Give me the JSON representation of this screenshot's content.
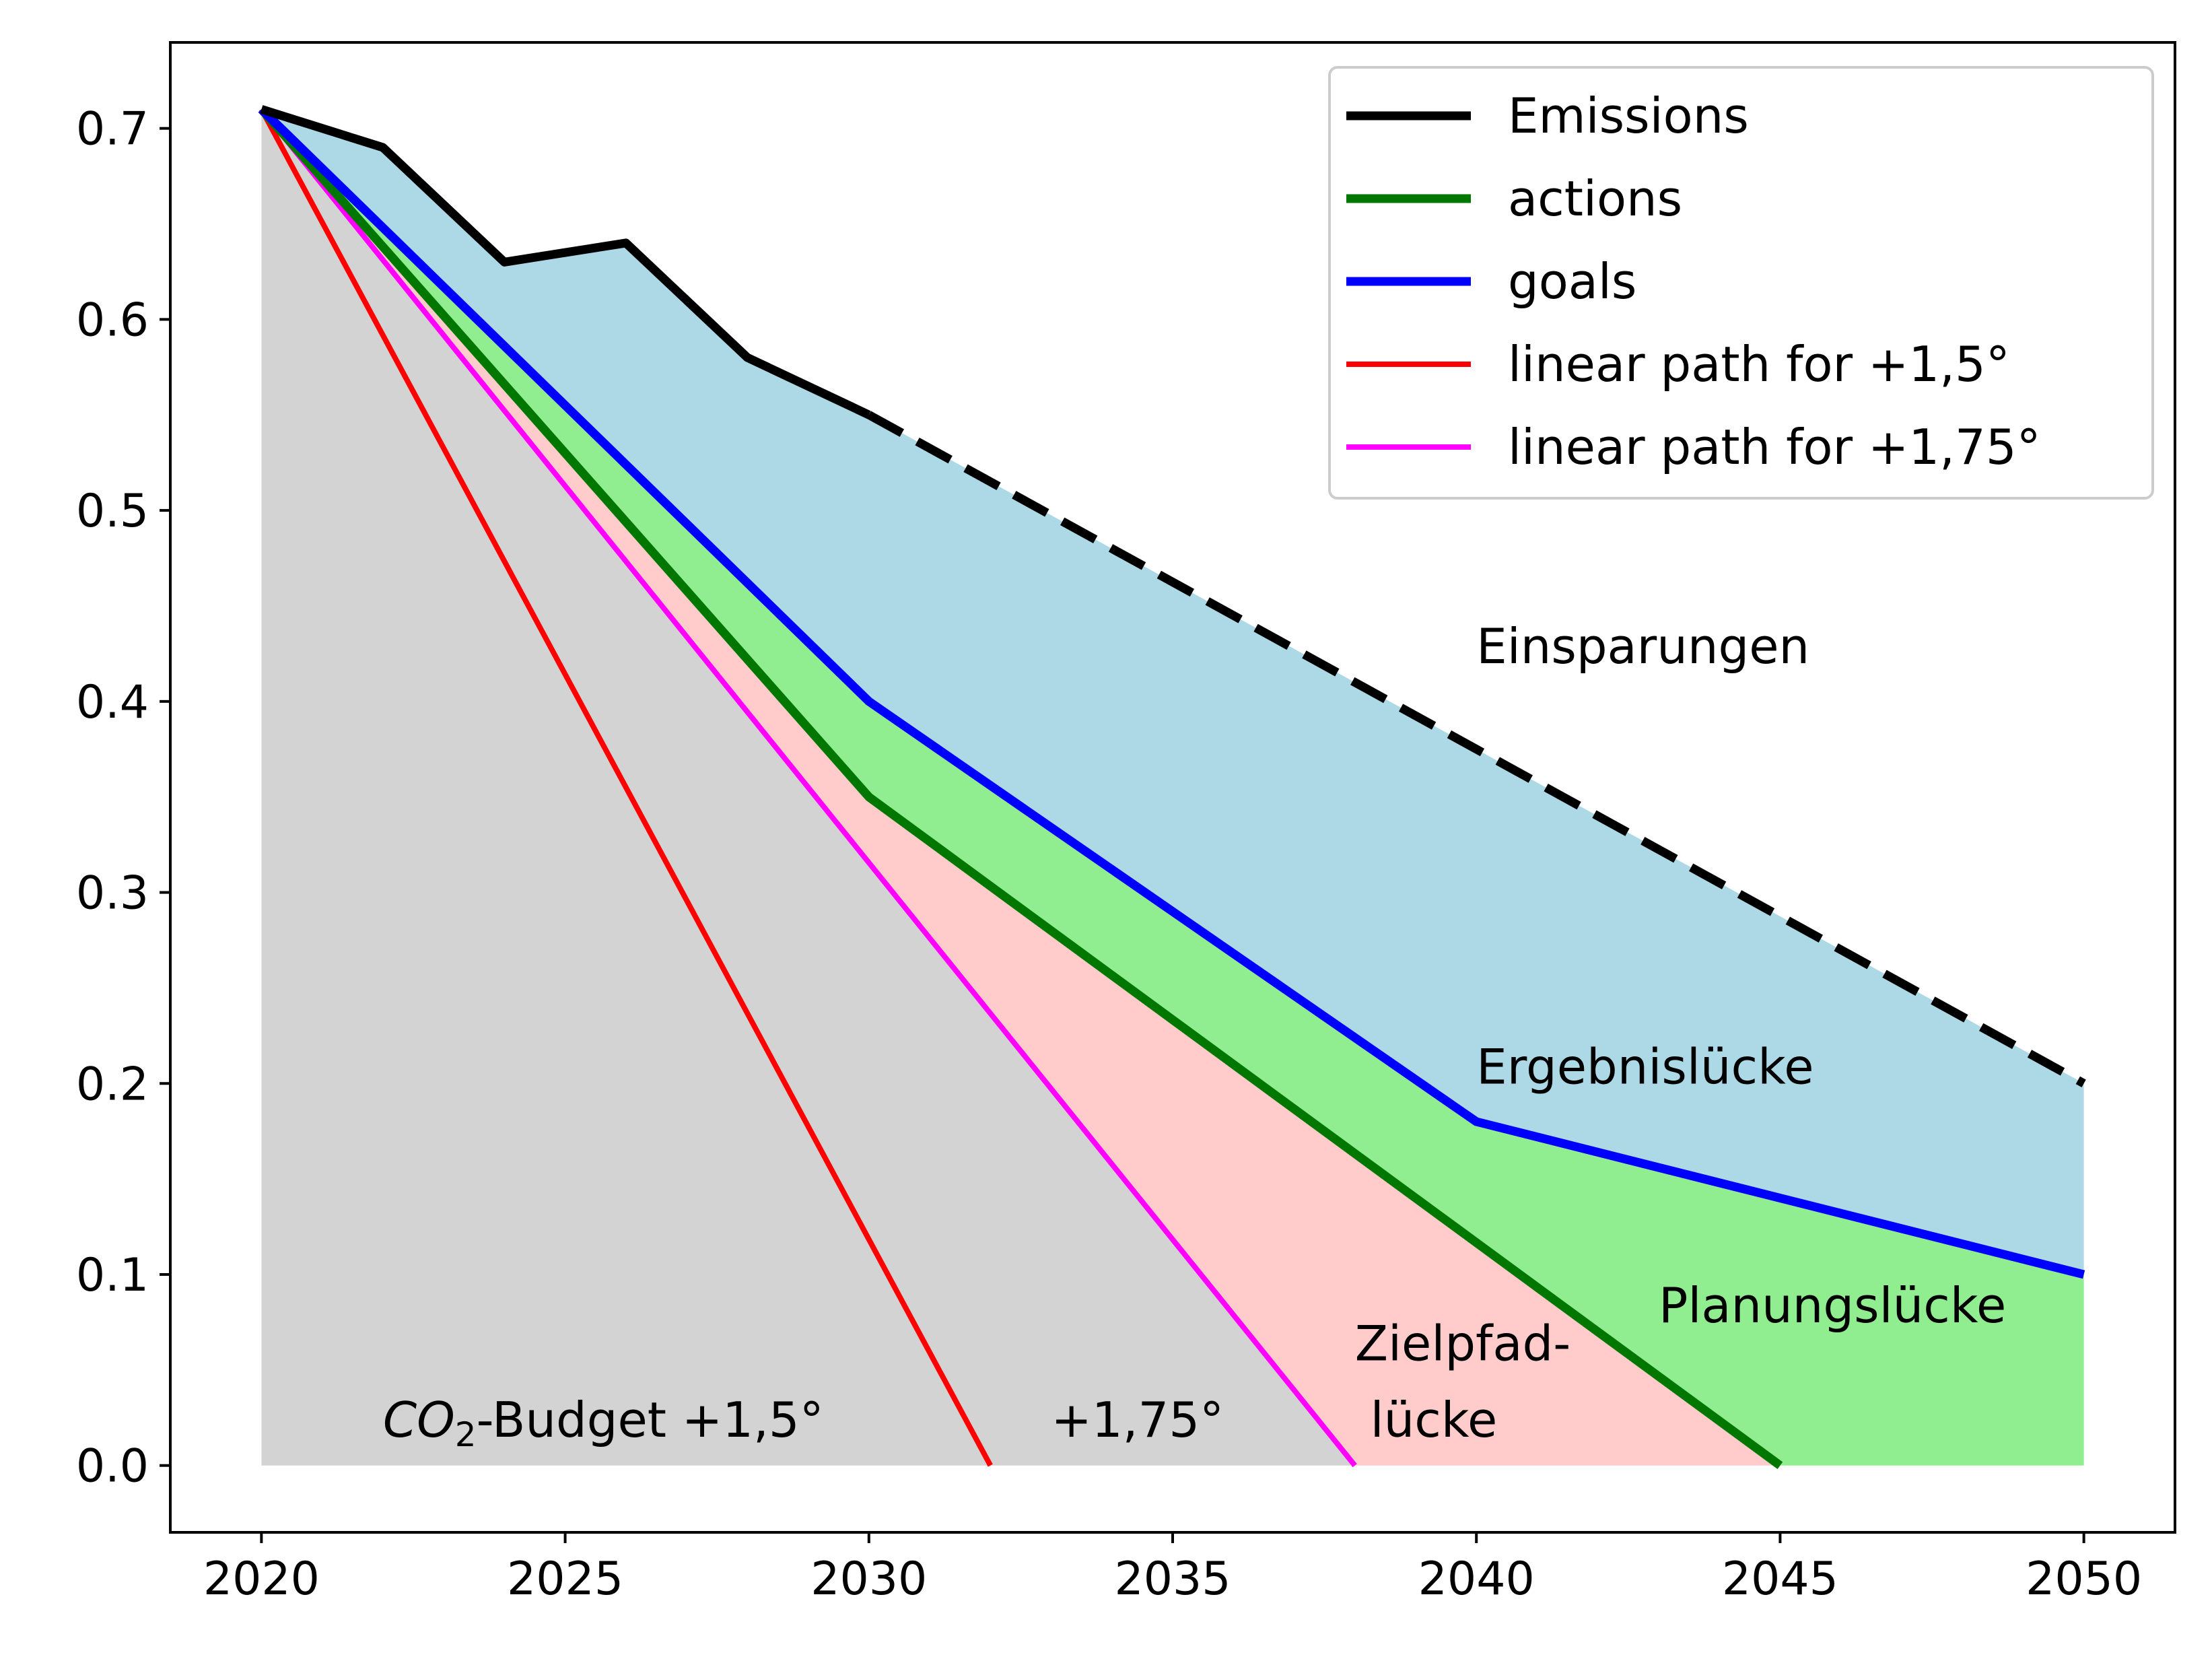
{
  "chart_data": {
    "type": "line",
    "xlim": [
      2018.5,
      2051.5
    ],
    "ylim": [
      -0.035,
      0.745
    ],
    "x_ticks": [
      2020,
      2025,
      2030,
      2035,
      2040,
      2045,
      2050
    ],
    "x_tick_labels": [
      "2020",
      "2025",
      "2030",
      "2035",
      "2040",
      "2045",
      "2050"
    ],
    "y_ticks": [
      0.0,
      0.1,
      0.2,
      0.3,
      0.4,
      0.5,
      0.6,
      0.7
    ],
    "y_tick_labels": [
      "0.0",
      "0.1",
      "0.2",
      "0.3",
      "0.4",
      "0.5",
      "0.6",
      "0.7"
    ],
    "grid": false,
    "legend_position": "top-right",
    "series": [
      {
        "name": "Emissions",
        "color": "#000000",
        "style": "solid",
        "x": [
          2020,
          2022,
          2024,
          2026,
          2028,
          2030
        ],
        "y": [
          0.71,
          0.69,
          0.63,
          0.64,
          0.58,
          0.55
        ]
      },
      {
        "name": "Emissions (projection)",
        "color": "#000000",
        "style": "dashed",
        "x": [
          2030,
          2050
        ],
        "y": [
          0.55,
          0.2
        ]
      },
      {
        "name": "actions",
        "color": "#007700",
        "style": "solid",
        "x": [
          2020,
          2030,
          2045
        ],
        "y": [
          0.71,
          0.35,
          0.0
        ]
      },
      {
        "name": "goals",
        "color": "#0000ff",
        "style": "solid",
        "x": [
          2020,
          2030,
          2040,
          2050
        ],
        "y": [
          0.71,
          0.4,
          0.18,
          0.1
        ]
      },
      {
        "name": "linear path for +1,5°",
        "color": "#ff0000",
        "style": "solid",
        "x": [
          2020,
          2032
        ],
        "y": [
          0.71,
          0.0
        ]
      },
      {
        "name": "linear path for +1,75°",
        "color": "#ff00ff",
        "style": "solid",
        "x": [
          2020,
          2038
        ],
        "y": [
          0.71,
          0.0
        ]
      }
    ],
    "legend_entries": [
      "Emissions",
      "actions",
      "goals",
      "linear path for +1,5°",
      "linear path for +1,75°"
    ],
    "areas": [
      {
        "name": "Einsparungen",
        "color": "#add8e6"
      },
      {
        "name": "Ergebnislücke",
        "color": "#90ee90"
      },
      {
        "name": "Zielpfadlücke",
        "color": "#ffcccb"
      },
      {
        "name": "CO2-Budget",
        "color": "#d3d3d3"
      }
    ],
    "annotations": {
      "einsparungen": {
        "text": "Einsparungen",
        "x": 2040,
        "y": 0.42
      },
      "ergebnisluecke": {
        "text": "Ergebnislücke",
        "x": 2040,
        "y": 0.2
      },
      "planungsluecke": {
        "text": "Planungslücke",
        "x": 2043,
        "y": 0.075
      },
      "zielpfad_1": {
        "text": "Zielpfad-",
        "x": 2038,
        "y": 0.055
      },
      "zielpfad_2": {
        "text": " lücke",
        "x": 2038,
        "y": 0.015
      },
      "budget_co": {
        "text": "CO",
        "x": 2022,
        "y": 0.015
      },
      "budget_sub": {
        "text": "2",
        "x": 2022,
        "y": 0.015
      },
      "budget_rest": {
        "text": "-Budget +1,5°",
        "x": 2022,
        "y": 0.015
      },
      "budget_175": {
        "text": "+1,75°",
        "x": 2033,
        "y": 0.015
      }
    }
  }
}
